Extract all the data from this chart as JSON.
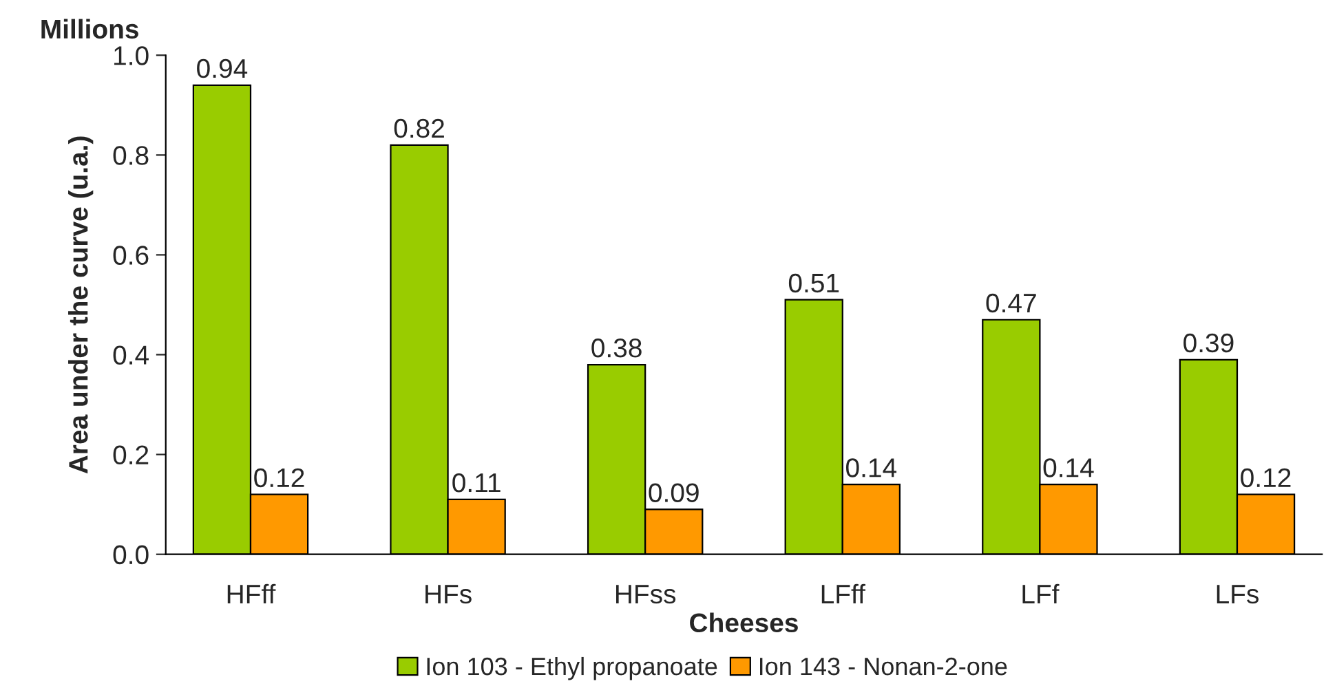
{
  "chart_data": {
    "type": "bar",
    "xlabel": "Cheeses",
    "ylabel": "Area under the curve (u.a.)",
    "annotations": [
      "Millions"
    ],
    "categories": [
      "HFff",
      "HFs",
      "HFss",
      "LFff",
      "LFf",
      "LFs"
    ],
    "series": [
      {
        "name": "Ion 103 - Ethyl propanoate",
        "color": "#99cc00",
        "values": [
          0.94,
          0.82,
          0.38,
          0.51,
          0.47,
          0.39
        ]
      },
      {
        "name": "Ion 143 - Nonan-2-one",
        "color": "#ff9900",
        "values": [
          0.12,
          0.11,
          0.09,
          0.14,
          0.14,
          0.12
        ]
      }
    ],
    "ylim": [
      0,
      1.0
    ],
    "yticks": [
      {
        "value": 0,
        "label": "0.0"
      },
      {
        "value": 0.2,
        "label": "0.2"
      },
      {
        "value": 0.4,
        "label": "0.4"
      },
      {
        "value": 0.6,
        "label": "0.6"
      },
      {
        "value": 0.8,
        "label": "0.8"
      },
      {
        "value": 1.0,
        "label": "1.0"
      }
    ],
    "data_labels": true,
    "legend": "bottom",
    "grid": false
  }
}
